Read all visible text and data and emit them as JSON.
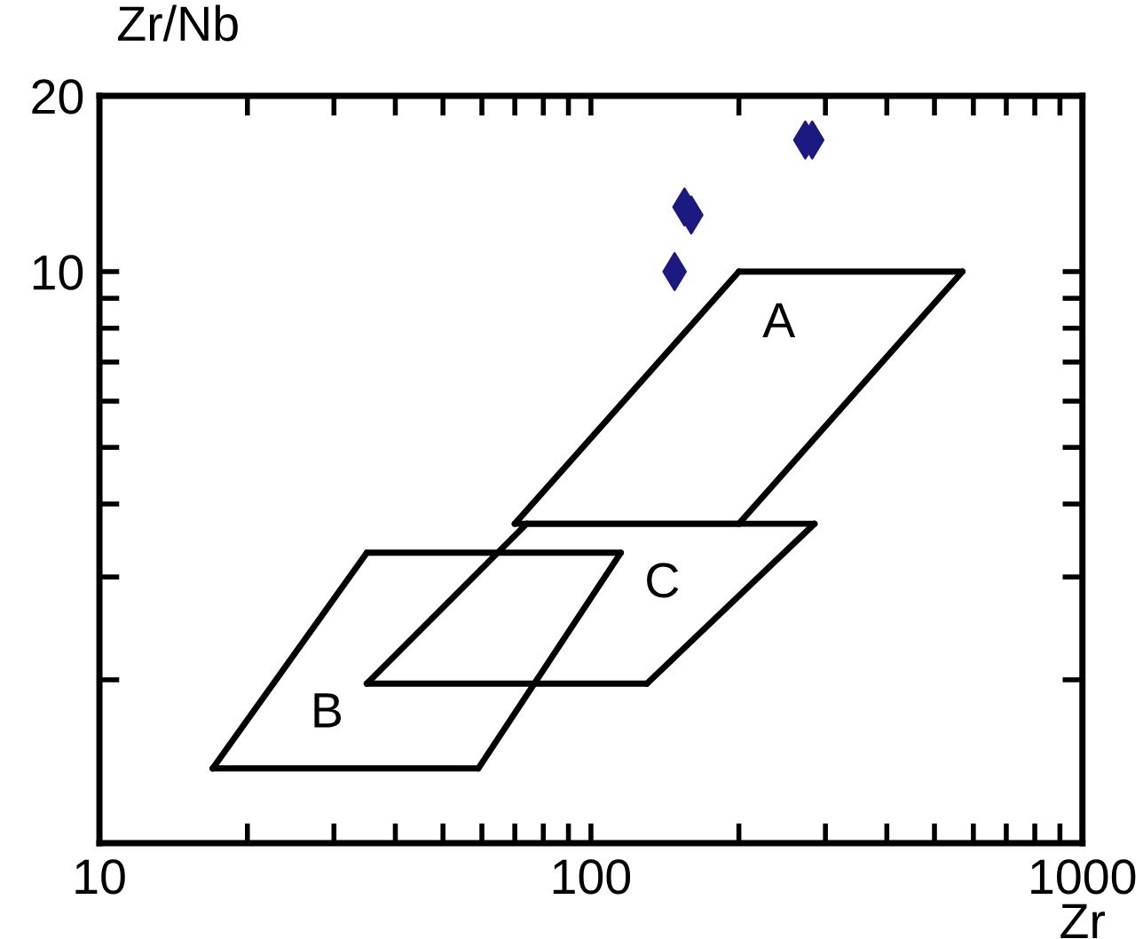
{
  "chart_data": {
    "type": "line",
    "xlabel": "Zr",
    "ylabel": "Zr/Nb",
    "log": "xy",
    "grid": false,
    "legend": false,
    "line_style": "solid",
    "xlim": [
      10,
      1000
    ],
    "ylim": [
      1.05,
      20
    ],
    "xticks": [
      10,
      {
        "value": 20,
        "label": null
      },
      {
        "value": 30,
        "label": null
      },
      {
        "value": 40,
        "label": null
      },
      {
        "value": 50,
        "label": null
      },
      {
        "value": 60,
        "label": null
      },
      {
        "value": 70,
        "label": null
      },
      {
        "value": 80,
        "label": null
      },
      {
        "value": 90,
        "label": null
      },
      100,
      {
        "value": 200,
        "label": null
      },
      {
        "value": 300,
        "label": null
      },
      {
        "value": 400,
        "label": null
      },
      {
        "value": 500,
        "label": null
      },
      {
        "value": 600,
        "label": null
      },
      {
        "value": 700,
        "label": null
      },
      {
        "value": 800,
        "label": null
      },
      {
        "value": 900,
        "label": null
      },
      1000
    ],
    "yticks": [
      {
        "value": 2,
        "label": null
      },
      {
        "value": 3,
        "label": null
      },
      {
        "value": 4,
        "label": null
      },
      {
        "value": 5,
        "label": null
      },
      {
        "value": 6,
        "label": null
      },
      {
        "value": 7,
        "label": null
      },
      {
        "value": 8,
        "label": null
      },
      {
        "value": 9,
        "label": null
      },
      10,
      20
    ],
    "series": [
      {
        "type": "scatter",
        "marker": "diamond",
        "color": "#1c1a80",
        "x": [
          148,
          155,
          160,
          273,
          282
        ],
        "values": [
          10,
          12.9,
          12.5,
          16.8,
          16.8
        ]
      },
      {
        "color": "#000000",
        "x": [
          200,
          570
        ],
        "values": [
          10,
          10
        ]
      },
      {
        "color": "#000000",
        "x": [
          70,
          200
        ],
        "values": [
          3.7,
          3.7
        ]
      },
      {
        "color": "#000000",
        "x": [
          70,
          200
        ],
        "values": [
          3.7,
          10
        ]
      },
      {
        "color": "#000000",
        "x": [
          200,
          570
        ],
        "values": [
          3.7,
          10
        ]
      },
      {
        "color": "#000000",
        "x": [
          17,
          59
        ],
        "values": [
          1.41,
          1.41
        ]
      },
      {
        "color": "#000000",
        "x": [
          35,
          115
        ],
        "values": [
          3.3,
          3.3
        ]
      },
      {
        "color": "#000000",
        "x": [
          17,
          35
        ],
        "values": [
          1.41,
          3.3
        ]
      },
      {
        "color": "#000000",
        "x": [
          59,
          115
        ],
        "values": [
          1.41,
          3.3
        ]
      },
      {
        "color": "#000000",
        "x": [
          35,
          130
        ],
        "values": [
          1.97,
          1.97
        ]
      },
      {
        "color": "#000000",
        "x": [
          74,
          285
        ],
        "values": [
          3.7,
          3.7
        ]
      },
      {
        "color": "#000000",
        "x": [
          35,
          74
        ],
        "values": [
          1.97,
          3.7
        ]
      },
      {
        "color": "#000000",
        "x": [
          130,
          285
        ],
        "values": [
          1.97,
          3.7
        ]
      }
    ],
    "annotations": [
      "A",
      "B",
      "C"
    ]
  }
}
